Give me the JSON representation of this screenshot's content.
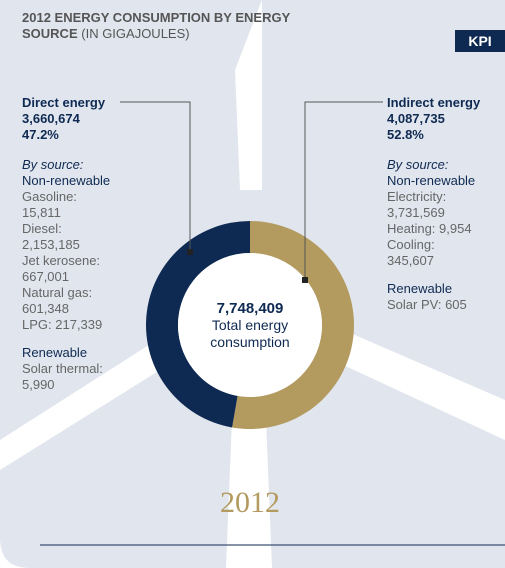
{
  "chart_data": {
    "type": "donut",
    "title": "2012 ENERGY CONSUMPTION BY ENERGY SOURCE",
    "subtitle": "(IN GIGAJOULES)",
    "badge": "KPI",
    "categories": [
      "Direct energy",
      "Indirect energy"
    ],
    "values": [
      3660674,
      4087735
    ],
    "value_labels": [
      "3,660,674",
      "4,087,735"
    ],
    "shares": [
      47.2,
      52.8
    ],
    "share_labels": [
      "47.2%",
      "52.8%"
    ],
    "colors": [
      "#0f2a52",
      "#b39a5e"
    ],
    "total": 7748409,
    "total_label": "7,748,409",
    "center_text": "Total energy consumption",
    "year": "2012",
    "breakdown": [
      {
        "heading": "By source:",
        "groups": [
          {
            "name": "Non-renewable",
            "items": [
              {
                "label": "Gasoline:",
                "value": "15,811"
              },
              {
                "label": "Diesel:",
                "value": "2,153,185"
              },
              {
                "label": "Jet kerosene:",
                "value": "667,001"
              },
              {
                "label": "Natural gas:",
                "value": "601,348"
              },
              {
                "label": "LPG:",
                "value": "217,339"
              }
            ]
          },
          {
            "name": "Renewable",
            "items": [
              {
                "label": "Solar thermal:",
                "value": "5,990"
              }
            ]
          }
        ]
      },
      {
        "heading": "By source:",
        "groups": [
          {
            "name": "Non-renewable",
            "items": [
              {
                "label": "Electricity:",
                "value": "3,731,569"
              },
              {
                "label": "Heating:",
                "value": "9,954"
              },
              {
                "label": "Cooling:",
                "value": "345,607"
              }
            ]
          },
          {
            "name": "Renewable",
            "items": [
              {
                "label": "Solar PV:",
                "value": "605"
              }
            ]
          }
        ]
      }
    ]
  }
}
